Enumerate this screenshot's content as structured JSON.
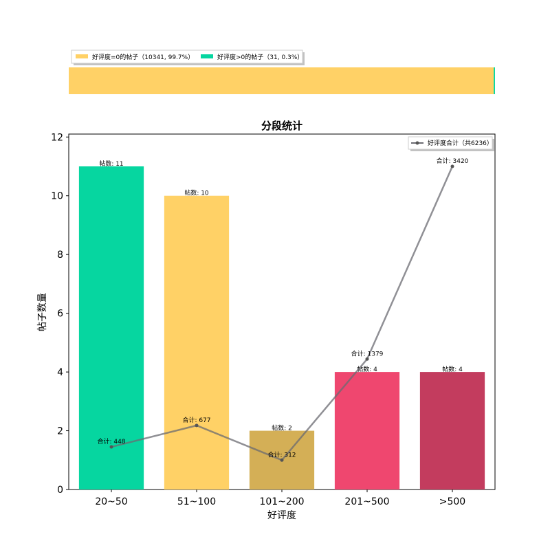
{
  "top_bar": {
    "legend": [
      {
        "label": "好评度=0的帖子（10341, 99.7%）",
        "color": "#FFD166"
      },
      {
        "label": "好评度>0的帖子（31, 0.3%）",
        "color": "#06D6A0"
      }
    ],
    "segments": [
      {
        "value": 10341,
        "color": "#FFD166"
      },
      {
        "value": 31,
        "color": "#06D6A0"
      }
    ]
  },
  "chart_data": {
    "type": "bar",
    "title": "分段统计",
    "xlabel": "好评度",
    "ylabel": "帖子数量",
    "ylim": [
      0,
      12.1
    ],
    "yticks": [
      0,
      2,
      4,
      6,
      8,
      10,
      12
    ],
    "categories": [
      "20~50",
      "51~100",
      "101~200",
      "201~500",
      ">500"
    ],
    "values": [
      11,
      10,
      2,
      4,
      4
    ],
    "bar_colors": [
      "#06D6A0",
      "#FFD166",
      "#D4AF56",
      "#EF476F",
      "#C33C5E"
    ],
    "bar_labels": [
      "帖数: 11",
      "帖数: 10",
      "帖数: 2",
      "帖数: 4",
      "帖数: 4"
    ],
    "line_series": {
      "name": "好评度合计（共6236）",
      "color": "#6b6b72",
      "values": [
        448,
        677,
        312,
        1379,
        3420
      ],
      "plot_y": [
        1.45,
        2.18,
        1.0,
        4.44,
        11.0
      ],
      "labels": [
        "合计: 448",
        "合计: 677",
        "合计: 312",
        "合计: 1379",
        "合计: 3420"
      ]
    },
    "legend_position": "top-right",
    "grid": false
  }
}
